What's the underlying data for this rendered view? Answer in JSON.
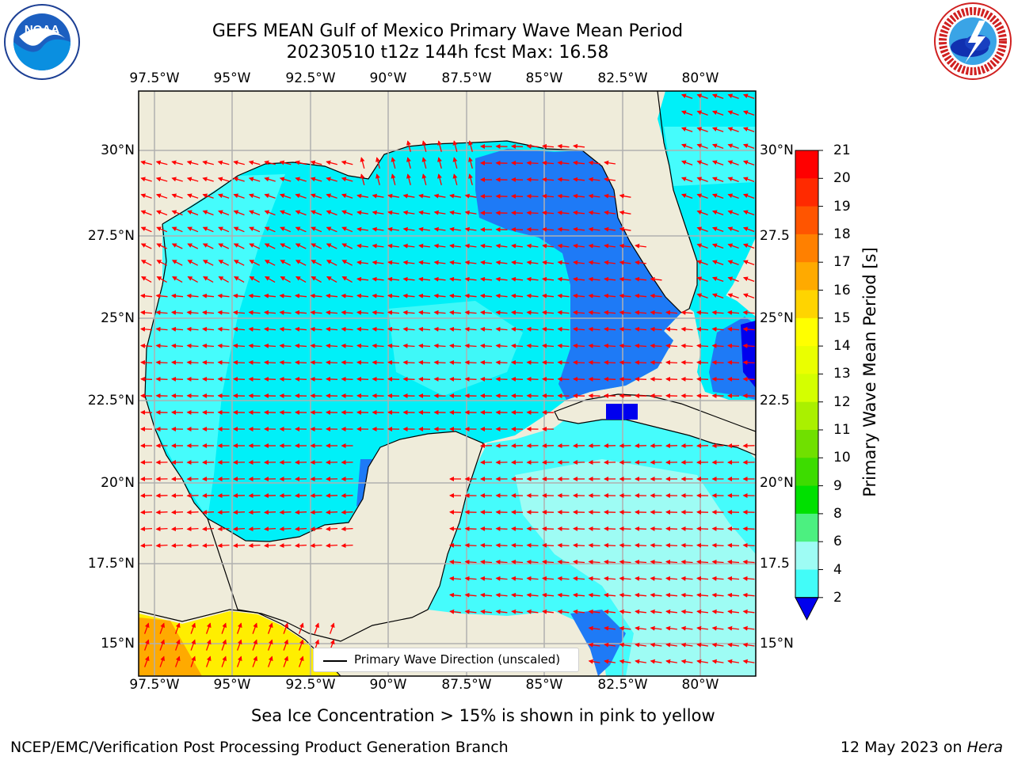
{
  "header": {
    "title_line1": "GEFS MEAN Gulf of Mexico Primary Wave Mean Period",
    "title_line2": "20230510 t12z 144h fcst   Max: 16.58"
  },
  "logos": {
    "left": {
      "name": "noaa-logo",
      "text": "NOAA",
      "ring_text": "NATIONAL OCEANIC AND ATMOSPHERIC ADMINISTRATION • U.S. DEPARTMENT OF COMMERCE"
    },
    "right": {
      "name": "nws-logo",
      "ring_text": "NATIONAL WEATHER SERVICE"
    }
  },
  "map": {
    "lon_labels_top": [
      "97.5°W",
      "95°W",
      "92.5°W",
      "90°W",
      "87.5°W",
      "85°W",
      "82.5°W",
      "80°W"
    ],
    "lon_labels_bottom": [
      "97.5°W",
      "95°W",
      "92.5°W",
      "90°W",
      "87.5°W",
      "85°W",
      "82.5°W",
      "80°W"
    ],
    "lat_labels_left": [
      "30°N",
      "27.5°N",
      "25°N",
      "22.5°N",
      "20°N",
      "17.5°N",
      "15°N"
    ],
    "lat_labels_right": [
      "30°N",
      "27.5",
      "25°N",
      "22.5",
      "20°N",
      "17.5",
      "15°N"
    ],
    "colors": {
      "land": "#efecda",
      "grid": "#b0b0b0",
      "arrow": "#ff0000"
    }
  },
  "legend": {
    "label": "Primary Wave Direction (unscaled)"
  },
  "colorbar": {
    "title": "Primary Wave Mean Period [s]",
    "ticks": [
      "21",
      "20",
      "19",
      "18",
      "17",
      "16",
      "15",
      "14",
      "13",
      "12",
      "11",
      "10",
      "9",
      "8",
      "6",
      "4",
      "2"
    ],
    "colors_top_to_bottom": [
      "#ff0000",
      "#ff2a00",
      "#ff5500",
      "#ff8000",
      "#ffaa00",
      "#ffd400",
      "#ffff00",
      "#eaff00",
      "#d4ff00",
      "#aaf000",
      "#70e000",
      "#3ddc00",
      "#00e000",
      "#4cf080",
      "#9efcf4",
      "#42fcf8",
      "#00eef4",
      "#0080ff"
    ],
    "under_color": "#0000ee"
  },
  "captions": {
    "sea_ice_note": "Sea Ice Concentration > 15% is shown in pink to yellow",
    "footer_left": "NCEP/EMC/Verification Post Processing Product Generation Branch",
    "footer_right_date": "12 May 2023 on ",
    "footer_right_machine": "Hera"
  }
}
